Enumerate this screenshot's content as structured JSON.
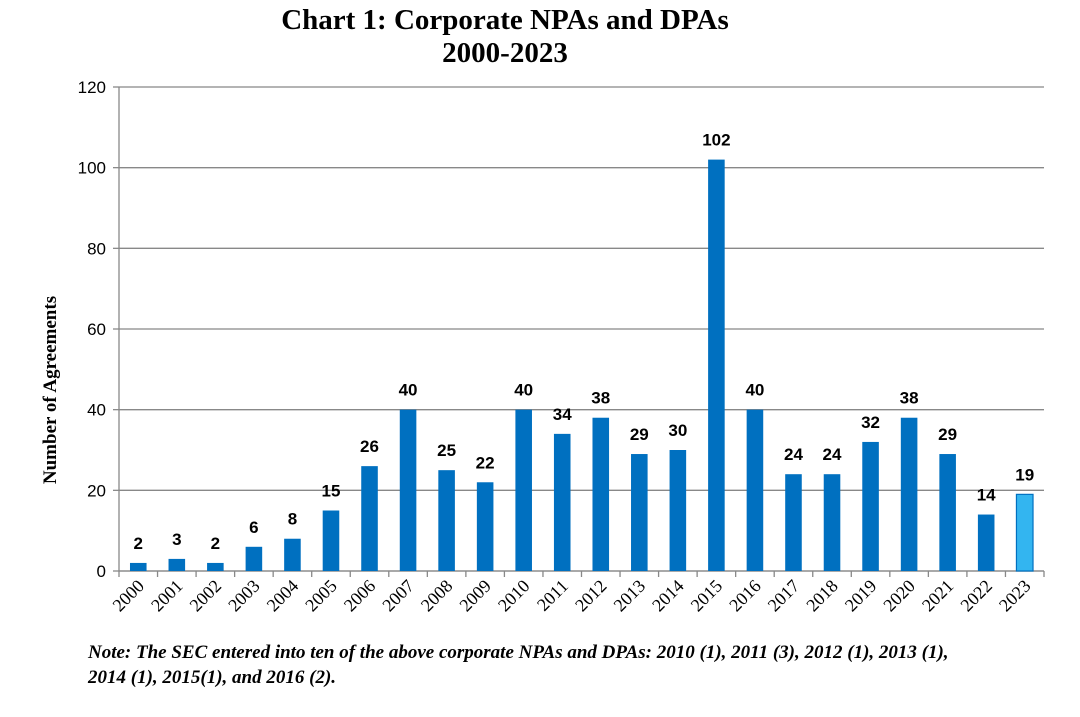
{
  "chart_data": {
    "type": "bar",
    "title": "Chart 1: Corporate NPAs and DPAs",
    "subtitle": "2000-2023",
    "ylabel": "Number of Agreements",
    "xlabel": "",
    "ylim": [
      0,
      120
    ],
    "yticks": [
      0,
      20,
      40,
      60,
      80,
      100,
      120
    ],
    "grid": true,
    "legend": "none",
    "categories": [
      "2000",
      "2001",
      "2002",
      "2003",
      "2004",
      "2005",
      "2006",
      "2007",
      "2008",
      "2009",
      "2010",
      "2011",
      "2012",
      "2013",
      "2014",
      "2015",
      "2016",
      "2017",
      "2018",
      "2019",
      "2020",
      "2021",
      "2022",
      "2023"
    ],
    "values": [
      2,
      3,
      2,
      6,
      8,
      15,
      26,
      40,
      25,
      22,
      40,
      34,
      38,
      29,
      30,
      102,
      40,
      24,
      24,
      32,
      38,
      29,
      14,
      19
    ],
    "colors": {
      "bar": "#0070C0",
      "highlight_bar": "#33B5F0",
      "highlight_category": "2023",
      "grid": "#888888"
    }
  },
  "note": "Note: The SEC entered into ten of the above corporate NPAs and DPAs: 2010 (1), 2011 (3), 2012 (1), 2013 (1), 2014 (1), 2015(1), and 2016 (2)."
}
